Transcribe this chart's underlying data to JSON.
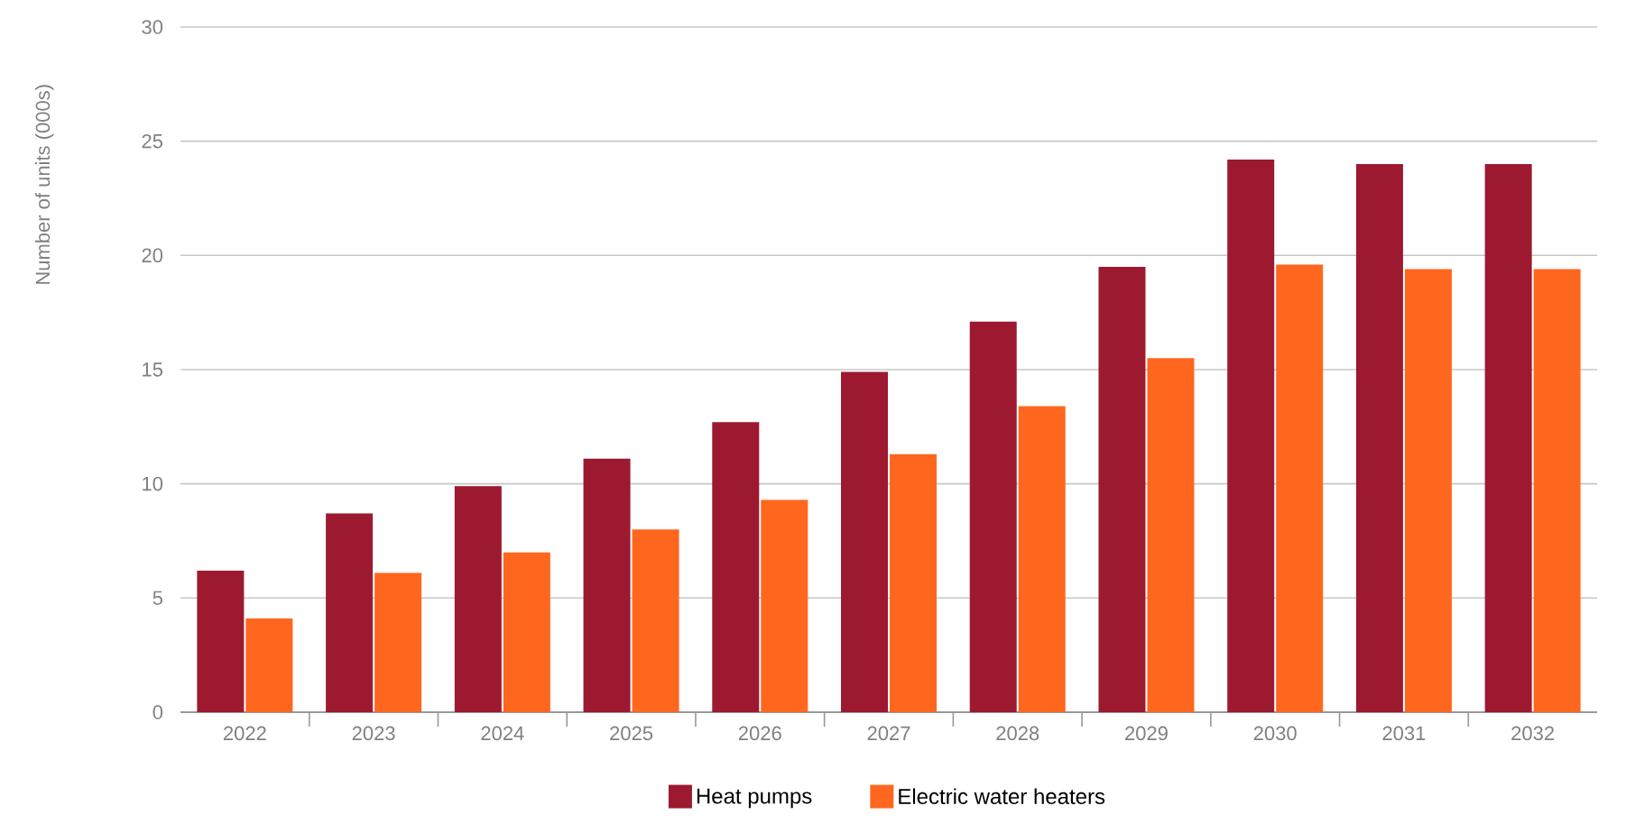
{
  "chart_data": {
    "type": "bar",
    "ylabel": "Number of units (000s)",
    "categories": [
      "2022",
      "2023",
      "2024",
      "2025",
      "2026",
      "2027",
      "2028",
      "2029",
      "2030",
      "2031",
      "2032"
    ],
    "series": [
      {
        "name": "Heat pumps",
        "color": "#9d1930",
        "values": [
          6.2,
          8.7,
          9.9,
          11.1,
          12.7,
          14.9,
          17.1,
          19.5,
          24.2,
          24.0,
          24.0
        ]
      },
      {
        "name": "Electric water heaters",
        "color": "#ff671f",
        "values": [
          4.1,
          6.1,
          7.0,
          8.0,
          9.3,
          11.3,
          13.4,
          15.5,
          19.6,
          19.4,
          19.4
        ]
      }
    ],
    "ylim": [
      0,
      30
    ],
    "yticks": [
      0,
      5,
      10,
      15,
      20,
      25,
      30
    ],
    "grid": "y",
    "legend": "bottom"
  }
}
